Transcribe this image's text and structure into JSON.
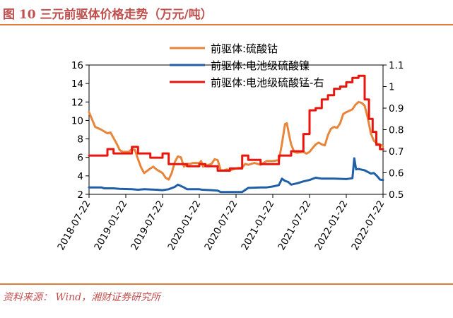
{
  "header": {
    "title": "图 10 三元前驱体价格走势（万元/吨）"
  },
  "footer": {
    "source": "资料来源： Wind，湘财证券研究所"
  },
  "colors": {
    "cobalt": "#e8853b",
    "nickel": "#1f5fa8",
    "manganese": "#e8160c",
    "accent": "#c0504d"
  },
  "chart_data": {
    "type": "line",
    "title": "三元前驱体价格走势（万元/吨）",
    "x_tick_labels": [
      "2018-07-22",
      "2019-01-22",
      "2019-07-22",
      "2020-01-22",
      "2020-07-22",
      "2021-01-22",
      "2021-07-22",
      "2022-01-22",
      "2022-07-22"
    ],
    "x_range": [
      0,
      48
    ],
    "x_unit": "months since 2018-07-22",
    "y_left": {
      "ticks": [
        "2",
        "4",
        "6",
        "8",
        "10",
        "12",
        "14",
        "16"
      ],
      "range": [
        2,
        16
      ]
    },
    "y_right": {
      "ticks": [
        "0.5",
        "0.6",
        "0.7",
        "0.8",
        "0.9",
        "1",
        "1.1"
      ],
      "range": [
        0.5,
        1.1
      ]
    },
    "series": [
      {
        "name": "前驱体:硫酸钴",
        "axis": "left",
        "color": "#e8853b",
        "step": false,
        "points": [
          [
            0,
            10.9
          ],
          [
            0.5,
            10.1
          ],
          [
            1,
            9.3
          ],
          [
            2,
            9.0
          ],
          [
            3,
            8.6
          ],
          [
            3.5,
            8.7
          ],
          [
            4,
            8.1
          ],
          [
            4.5,
            7.5
          ],
          [
            5,
            6.8
          ],
          [
            5.5,
            6.6
          ],
          [
            6,
            6.6
          ],
          [
            6.5,
            6.6
          ],
          [
            7,
            6.9
          ],
          [
            7.5,
            6.8
          ],
          [
            8,
            5.8
          ],
          [
            8.5,
            4.9
          ],
          [
            9,
            4.3
          ],
          [
            10,
            4.8
          ],
          [
            10.5,
            5.0
          ],
          [
            11,
            4.7
          ],
          [
            12,
            4.3
          ],
          [
            12.5,
            3.8
          ],
          [
            13,
            3.6
          ],
          [
            13.5,
            4.3
          ],
          [
            14,
            5.5
          ],
          [
            14.5,
            6.1
          ],
          [
            15,
            6.0
          ],
          [
            15.5,
            5.0
          ],
          [
            16,
            5.3
          ],
          [
            16.5,
            5.3
          ],
          [
            17,
            5.4
          ],
          [
            18,
            5.4
          ],
          [
            18.3,
            5.6
          ],
          [
            18.6,
            5.0
          ],
          [
            19,
            5.1
          ],
          [
            20,
            5.3
          ],
          [
            20.5,
            5.8
          ],
          [
            21,
            5.7
          ],
          [
            21.5,
            4.6
          ],
          [
            22,
            4.6
          ],
          [
            22.5,
            4.7
          ],
          [
            23,
            4.6
          ],
          [
            24,
            4.8
          ],
          [
            25,
            4.9
          ],
          [
            25.5,
            5.3
          ],
          [
            26,
            5.2
          ],
          [
            27,
            5.4
          ],
          [
            28,
            5.2
          ],
          [
            29,
            5.6
          ],
          [
            30,
            5.6
          ],
          [
            31,
            5.7
          ],
          [
            31.5,
            7.5
          ],
          [
            32,
            9.6
          ],
          [
            32.3,
            9.7
          ],
          [
            32.7,
            8.3
          ],
          [
            33,
            7.4
          ],
          [
            33.5,
            6.6
          ],
          [
            34,
            6.5
          ],
          [
            35,
            6.6
          ],
          [
            35.5,
            6.4
          ],
          [
            36,
            6.6
          ],
          [
            36.5,
            7.0
          ],
          [
            37,
            7.4
          ],
          [
            37.5,
            7.6
          ],
          [
            38,
            7.4
          ],
          [
            38.5,
            7.3
          ],
          [
            39,
            8.4
          ],
          [
            39.5,
            9.1
          ],
          [
            40,
            9.3
          ],
          [
            40.5,
            9.2
          ],
          [
            41,
            9.7
          ],
          [
            41.5,
            10.7
          ],
          [
            42,
            10.9
          ],
          [
            43,
            11.2
          ],
          [
            43.5,
            11.7
          ],
          [
            44,
            12.0
          ],
          [
            44.5,
            11.9
          ],
          [
            45,
            11.6
          ],
          [
            45.5,
            10.3
          ],
          [
            46,
            8.6
          ],
          [
            46.5,
            7.8
          ],
          [
            47,
            7.5
          ],
          [
            47.5,
            7.4
          ],
          [
            48,
            7.2
          ]
        ]
      },
      {
        "name": "前驱体:电池级硫酸镍",
        "axis": "left",
        "color": "#1f5fa8",
        "step": false,
        "points": [
          [
            0,
            2.75
          ],
          [
            2,
            2.75
          ],
          [
            2.5,
            2.65
          ],
          [
            4,
            2.65
          ],
          [
            5,
            2.6
          ],
          [
            7,
            2.55
          ],
          [
            8,
            2.5
          ],
          [
            9,
            2.55
          ],
          [
            11,
            2.5
          ],
          [
            12,
            2.45
          ],
          [
            13,
            2.55
          ],
          [
            14,
            2.8
          ],
          [
            14.5,
            3.05
          ],
          [
            15,
            2.9
          ],
          [
            15.5,
            2.75
          ],
          [
            16,
            2.55
          ],
          [
            18,
            2.55
          ],
          [
            18.5,
            2.5
          ],
          [
            20,
            2.45
          ],
          [
            21,
            2.4
          ],
          [
            21.5,
            2.25
          ],
          [
            25,
            2.25
          ],
          [
            26,
            2.7
          ],
          [
            28,
            2.75
          ],
          [
            29,
            2.75
          ],
          [
            30,
            2.85
          ],
          [
            31,
            3.0
          ],
          [
            31.5,
            3.7
          ],
          [
            32,
            3.45
          ],
          [
            32.5,
            3.35
          ],
          [
            33,
            3.05
          ],
          [
            34,
            3.2
          ],
          [
            35,
            3.4
          ],
          [
            36,
            3.55
          ],
          [
            37,
            3.8
          ],
          [
            38,
            3.7
          ],
          [
            40,
            3.7
          ],
          [
            42,
            3.65
          ],
          [
            42.5,
            3.7
          ],
          [
            43,
            3.75
          ],
          [
            43.3,
            5.9
          ],
          [
            43.6,
            4.7
          ],
          [
            44,
            4.75
          ],
          [
            45,
            4.6
          ],
          [
            46,
            4.25
          ],
          [
            46.5,
            4.3
          ],
          [
            47,
            4.0
          ],
          [
            47.5,
            3.6
          ],
          [
            48,
            3.55
          ]
        ]
      },
      {
        "name": "前驱体:电池级硫酸锰-右",
        "axis": "right",
        "color": "#e8160c",
        "step": true,
        "points": [
          [
            0,
            0.68
          ],
          [
            3,
            0.68
          ],
          [
            3,
            0.71
          ],
          [
            4,
            0.71
          ],
          [
            4,
            0.69
          ],
          [
            7,
            0.69
          ],
          [
            7,
            0.72
          ],
          [
            8,
            0.72
          ],
          [
            8,
            0.69
          ],
          [
            10,
            0.69
          ],
          [
            10,
            0.67
          ],
          [
            12,
            0.67
          ],
          [
            12,
            0.69
          ],
          [
            13,
            0.69
          ],
          [
            13,
            0.64
          ],
          [
            16,
            0.64
          ],
          [
            16,
            0.63
          ],
          [
            18,
            0.63
          ],
          [
            18,
            0.64
          ],
          [
            19,
            0.64
          ],
          [
            19,
            0.63
          ],
          [
            21,
            0.63
          ],
          [
            21,
            0.61
          ],
          [
            23,
            0.61
          ],
          [
            23,
            0.62
          ],
          [
            25,
            0.62
          ],
          [
            25,
            0.68
          ],
          [
            26,
            0.68
          ],
          [
            26,
            0.66
          ],
          [
            28,
            0.66
          ],
          [
            28,
            0.64
          ],
          [
            31,
            0.64
          ],
          [
            31,
            0.68
          ],
          [
            33,
            0.68
          ],
          [
            33,
            0.7
          ],
          [
            35,
            0.7
          ],
          [
            35,
            0.78
          ],
          [
            36,
            0.78
          ],
          [
            36,
            0.89
          ],
          [
            37,
            0.89
          ],
          [
            37,
            0.9
          ],
          [
            38,
            0.9
          ],
          [
            38,
            0.94
          ],
          [
            39,
            0.94
          ],
          [
            39,
            0.96
          ],
          [
            40,
            0.96
          ],
          [
            40,
            0.99
          ],
          [
            41,
            0.99
          ],
          [
            41,
            1.0
          ],
          [
            42,
            1.0
          ],
          [
            42,
            1.02
          ],
          [
            43,
            1.02
          ],
          [
            43,
            1.04
          ],
          [
            44,
            1.04
          ],
          [
            44,
            1.05
          ],
          [
            45,
            1.05
          ],
          [
            45,
            0.94
          ],
          [
            45.7,
            0.94
          ],
          [
            45.7,
            0.85
          ],
          [
            46.3,
            0.85
          ],
          [
            46.3,
            0.79
          ],
          [
            46.9,
            0.79
          ],
          [
            46.9,
            0.73
          ],
          [
            47.5,
            0.73
          ],
          [
            47.5,
            0.71
          ],
          [
            48,
            0.71
          ]
        ]
      }
    ]
  }
}
